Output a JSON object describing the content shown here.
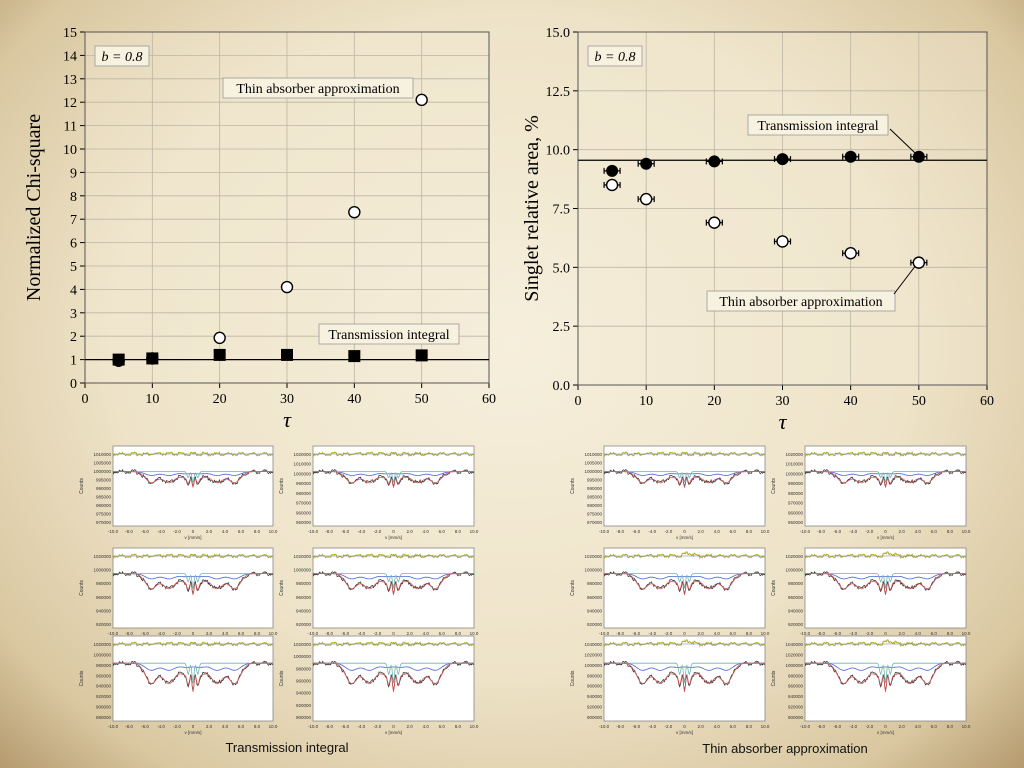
{
  "captions": {
    "left": "Transmission integral",
    "right": "Thin absorber approximation"
  },
  "chart_data": [
    {
      "type": "scatter",
      "title": "",
      "xlabel": "τ",
      "ylabel": "Normalized Chi-square",
      "xlim": [
        0,
        60
      ],
      "ylim": [
        0,
        15
      ],
      "xticks": [
        "0",
        "10",
        "20",
        "30",
        "40",
        "50",
        "60"
      ],
      "yticks": [
        "0",
        "1",
        "2",
        "3",
        "4",
        "5",
        "6",
        "7",
        "8",
        "9",
        "10",
        "11",
        "12",
        "13",
        "14",
        "15"
      ],
      "grid": true,
      "annotation_b": "b = 0.8",
      "reference_line": 1,
      "series": [
        {
          "name": "Thin absorber approximation",
          "marker": "open-circle",
          "x": [
            5,
            10,
            20,
            30,
            40,
            50
          ],
          "y": [
            0.95,
            1.05,
            1.93,
            4.1,
            7.3,
            12.1
          ]
        },
        {
          "name": "Transmission integral",
          "marker": "filled-square",
          "x": [
            5,
            10,
            20,
            30,
            40,
            50
          ],
          "y": [
            1.0,
            1.05,
            1.2,
            1.2,
            1.15,
            1.18
          ]
        }
      ]
    },
    {
      "type": "scatter",
      "title": "",
      "xlabel": "τ",
      "ylabel": "Singlet relative area, %",
      "xlim": [
        0,
        60
      ],
      "ylim": [
        0,
        15
      ],
      "xticks": [
        "0",
        "10",
        "20",
        "30",
        "40",
        "50",
        "60"
      ],
      "yticks": [
        "0.0",
        "2.5",
        "5.0",
        "7.5",
        "10.0",
        "12.5",
        "15.0"
      ],
      "grid": true,
      "annotation_b": "b = 0.8",
      "reference_line": 9.55,
      "series": [
        {
          "name": "Transmission integral",
          "marker": "filled-circle",
          "x": [
            5,
            10,
            20,
            30,
            40,
            50
          ],
          "y": [
            9.1,
            9.4,
            9.5,
            9.6,
            9.7,
            9.7
          ]
        },
        {
          "name": "Thin absorber approximation",
          "marker": "open-circle",
          "x": [
            5,
            10,
            20,
            30,
            40,
            50
          ],
          "y": [
            8.5,
            7.9,
            6.9,
            6.1,
            5.6,
            5.2
          ]
        }
      ]
    }
  ],
  "spectra": {
    "xlabel": "v [mm/s]",
    "ylabel": "Counts",
    "xticks": [
      "-10.0",
      "-8.0",
      "-6.0",
      "-4.0",
      "-2.0",
      "0",
      "2.0",
      "4.0",
      "6.0",
      "8.0",
      "10.0"
    ],
    "left": [
      {
        "yticks": [
          "1010000",
          "1005000",
          "1000000",
          "995000",
          "990000",
          "985000",
          "980000",
          "975000",
          "970000"
        ]
      },
      {
        "yticks": [
          "1020000",
          "1010000",
          "1000000",
          "990000",
          "980000",
          "970000",
          "960000",
          "950000"
        ]
      },
      {
        "yticks": [
          "1020000",
          "1000000",
          "980000",
          "960000",
          "940000",
          "920000"
        ]
      },
      {
        "yticks": [
          "1020000",
          "1000000",
          "980000",
          "960000",
          "940000",
          "920000"
        ]
      },
      {
        "yticks": [
          "1020000",
          "1000000",
          "980000",
          "960000",
          "940000",
          "920000",
          "900000",
          "880000"
        ]
      },
      {
        "yticks": [
          "1020000",
          "1000000",
          "980000",
          "960000",
          "940000",
          "920000",
          "900000"
        ]
      }
    ],
    "right": [
      {
        "yticks": [
          "1010000",
          "1005000",
          "1000000",
          "995000",
          "990000",
          "985000",
          "980000",
          "975000",
          "970000"
        ]
      },
      {
        "yticks": [
          "1020000",
          "1010000",
          "1000000",
          "990000",
          "980000",
          "970000",
          "960000",
          "950000"
        ]
      },
      {
        "yticks": [
          "1020000",
          "1000000",
          "980000",
          "960000",
          "940000",
          "920000"
        ]
      },
      {
        "yticks": [
          "1020000",
          "1000000",
          "980000",
          "960000",
          "940000",
          "920000"
        ]
      },
      {
        "yticks": [
          "1040000",
          "1020000",
          "1000000",
          "980000",
          "960000",
          "940000",
          "920000",
          "900000"
        ]
      },
      {
        "yticks": [
          "1040000",
          "1020000",
          "1000000",
          "980000",
          "960000",
          "940000",
          "920000",
          "900000"
        ]
      }
    ]
  }
}
